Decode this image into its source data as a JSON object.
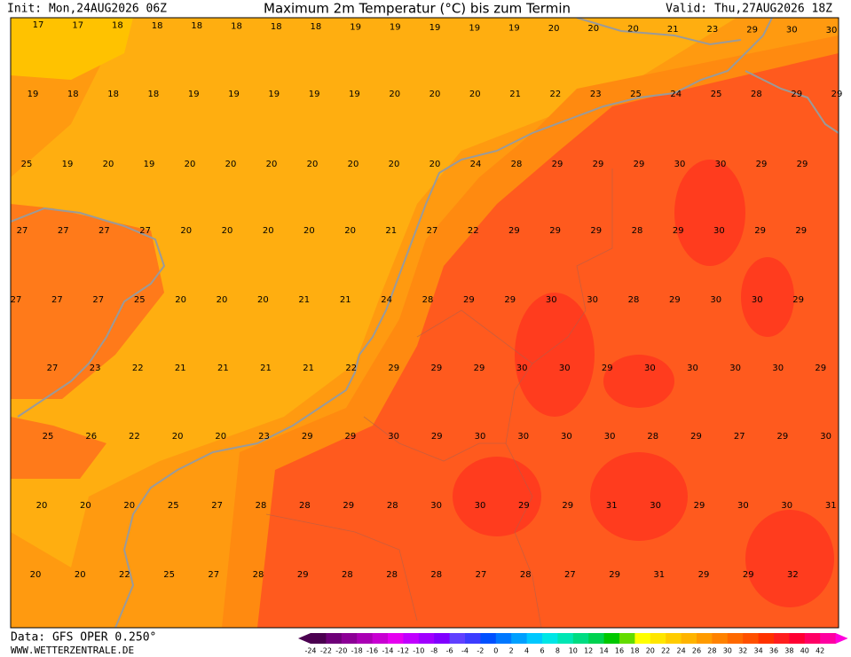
{
  "header": {
    "init": "Init: Mon,24AUG2026 06Z",
    "title": "Maximum 2m Temperatur (°C) bis zum Termin",
    "valid": "Valid: Thu,27AUG2026 18Z"
  },
  "map": {
    "rows": [
      [
        17,
        17,
        18,
        18,
        18,
        18,
        18,
        18,
        19,
        19,
        19,
        19,
        19,
        20,
        20,
        20,
        21,
        23,
        29,
        30,
        30
      ],
      [
        19,
        18,
        18,
        18,
        19,
        19,
        19,
        19,
        19,
        20,
        20,
        20,
        21,
        22,
        23,
        25,
        24,
        25,
        28,
        29,
        29
      ],
      [
        25,
        19,
        20,
        19,
        20,
        20,
        20,
        20,
        20,
        20,
        20,
        24,
        28,
        29,
        29,
        29,
        30,
        30,
        29,
        29
      ],
      [
        27,
        27,
        27,
        27,
        20,
        20,
        20,
        20,
        20,
        21,
        27,
        22,
        29,
        29,
        29,
        28,
        29,
        30,
        29,
        29
      ],
      [
        27,
        27,
        27,
        25,
        20,
        20,
        20,
        21,
        21,
        24,
        28,
        29,
        29,
        30,
        30,
        28,
        29,
        30,
        30,
        29
      ],
      [
        27,
        23,
        22,
        21,
        21,
        21,
        21,
        22,
        29,
        29,
        29,
        30,
        30,
        29,
        30,
        30,
        30,
        30,
        29
      ],
      [
        25,
        26,
        22,
        20,
        20,
        23,
        29,
        29,
        30,
        29,
        30,
        30,
        30,
        30,
        28,
        29,
        27,
        29,
        30
      ],
      [
        20,
        20,
        20,
        25,
        27,
        28,
        28,
        29,
        28,
        30,
        30,
        29,
        29,
        31,
        30,
        29,
        30,
        30,
        31
      ],
      [
        20,
        20,
        22,
        25,
        27,
        28,
        29,
        28,
        28,
        28,
        27,
        28,
        27,
        29,
        31,
        29,
        29,
        32
      ]
    ]
  },
  "colorbar": {
    "labels": [
      -24,
      -22,
      -20,
      -18,
      -16,
      -14,
      -12,
      -10,
      -8,
      -6,
      -4,
      -2,
      0,
      2,
      4,
      6,
      8,
      10,
      12,
      14,
      16,
      18,
      20,
      22,
      24,
      26,
      28,
      30,
      32,
      34,
      36,
      38,
      40,
      42
    ],
    "colors": [
      "#4b0050",
      "#6e0078",
      "#8c0096",
      "#aa00b4",
      "#c800d2",
      "#e600f0",
      "#c000ff",
      "#a000ff",
      "#8000ff",
      "#6040ff",
      "#3c3cff",
      "#0050ff",
      "#0078ff",
      "#00a0ff",
      "#00c8ff",
      "#00e6e6",
      "#00e6b4",
      "#00dc82",
      "#00d250",
      "#00c800",
      "#64dc00",
      "#ffff00",
      "#ffe600",
      "#ffcc00",
      "#ffb400",
      "#ff9b00",
      "#ff8200",
      "#ff6900",
      "#ff5000",
      "#ff3200",
      "#ff1e1e",
      "#ff0032",
      "#ff0064",
      "#ff00a0"
    ]
  },
  "footer": {
    "source": "Data: GFS OPER 0.250°",
    "site": "WWW.WETTERZENTRALE.DE"
  }
}
